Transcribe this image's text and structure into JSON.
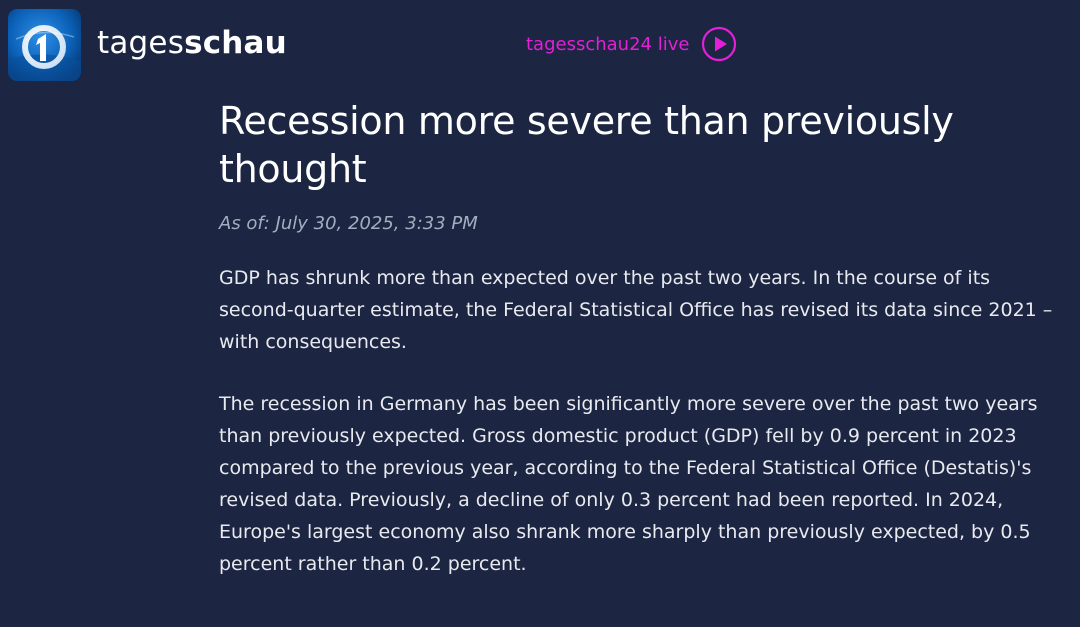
{
  "header": {
    "brand_light": "tages",
    "brand_bold": "schau",
    "live_label": "tagesschau24 live"
  },
  "icons": {
    "logo": "ard-one-logo-icon",
    "play": "play-circle-icon"
  },
  "colors": {
    "background": "#1c2541",
    "accent_live": "#e320d8",
    "logo_blue": "#0b61b8"
  },
  "article": {
    "headline": "Recession more severe than previously thought",
    "timestamp": "As of: July 30, 2025, 3:33 PM",
    "lead": "GDP has shrunk more than expected over the past two years. In the course of its second-quarter estimate, the Federal Statistical Office has revised its data since 2021 – with consequences.",
    "paragraphs": [
      "The recession in Germany has been significantly more severe over the past two years than previously expected. Gross domestic product (GDP) fell by 0.9 percent in 2023 compared to the previous year, according to the Federal Statistical Office (Destatis)'s revised data. Previously, a decline of only 0.3 percent had been reported. In 2024, Europe's largest economy also shrank more sharply than previously expected, by 0.5 percent rather than 0.2 percent."
    ]
  }
}
